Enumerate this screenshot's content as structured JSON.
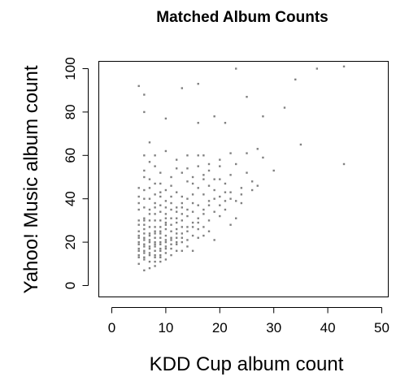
{
  "chart_data": {
    "type": "scatter",
    "title": "Matched Album Counts",
    "xlabel": "KDD Cup album count",
    "ylabel": "Yahoo! Music album count",
    "xlim": [
      0,
      50
    ],
    "ylim": [
      0,
      100
    ],
    "xticks": [
      0,
      10,
      20,
      30,
      40,
      50
    ],
    "yticks": [
      0,
      20,
      40,
      60,
      80,
      100
    ],
    "x_tick_labels": [
      "0",
      "10",
      "20",
      "30",
      "40",
      "50"
    ],
    "y_tick_labels": [
      "0",
      "20",
      "40",
      "60",
      "80",
      "100"
    ],
    "grid": false,
    "point_color": "#808080",
    "points": [
      [
        5,
        92
      ],
      [
        6,
        88
      ],
      [
        6,
        80
      ],
      [
        10,
        77
      ],
      [
        13,
        91
      ],
      [
        16,
        93
      ],
      [
        16,
        75
      ],
      [
        21,
        75
      ],
      [
        23,
        100
      ],
      [
        25,
        87
      ],
      [
        19,
        78
      ],
      [
        28,
        78
      ],
      [
        32,
        82
      ],
      [
        34,
        95
      ],
      [
        38,
        100
      ],
      [
        43,
        101
      ],
      [
        35,
        65
      ],
      [
        43,
        56
      ],
      [
        30,
        53
      ],
      [
        27,
        63
      ],
      [
        28,
        59
      ],
      [
        25,
        61
      ],
      [
        22,
        61
      ],
      [
        20,
        58
      ],
      [
        17,
        60
      ],
      [
        16,
        60
      ],
      [
        18,
        56
      ],
      [
        14,
        54
      ],
      [
        12,
        54
      ],
      [
        8,
        60
      ],
      [
        7,
        66
      ],
      [
        7,
        57
      ],
      [
        6,
        53
      ],
      [
        5,
        45
      ],
      [
        6,
        50
      ],
      [
        8,
        47
      ],
      [
        9,
        41
      ],
      [
        10,
        44
      ],
      [
        11,
        46
      ],
      [
        12,
        43
      ],
      [
        14,
        48
      ],
      [
        15,
        50
      ],
      [
        17,
        51
      ],
      [
        19,
        49
      ],
      [
        21,
        47
      ],
      [
        22,
        51
      ],
      [
        24,
        45
      ],
      [
        23,
        39
      ],
      [
        20,
        41
      ],
      [
        18,
        37
      ],
      [
        17,
        33
      ],
      [
        16,
        31
      ],
      [
        14,
        35
      ],
      [
        13,
        33
      ],
      [
        12,
        29
      ],
      [
        11,
        31
      ],
      [
        10,
        36
      ],
      [
        9,
        34
      ],
      [
        8,
        38
      ],
      [
        7,
        40
      ],
      [
        5,
        38
      ],
      [
        5,
        35
      ],
      [
        6,
        31
      ],
      [
        6,
        28
      ],
      [
        7,
        27
      ],
      [
        8,
        25
      ],
      [
        9,
        24
      ],
      [
        10,
        26
      ],
      [
        11,
        22
      ],
      [
        12,
        19
      ],
      [
        13,
        24
      ],
      [
        14,
        27
      ],
      [
        15,
        23
      ],
      [
        16,
        22
      ],
      [
        17,
        27
      ],
      [
        18,
        30
      ],
      [
        19,
        21
      ],
      [
        15,
        16
      ],
      [
        13,
        16
      ],
      [
        11,
        14
      ],
      [
        10,
        12
      ],
      [
        9,
        11
      ],
      [
        8,
        9
      ],
      [
        7,
        8
      ],
      [
        6,
        7
      ],
      [
        5,
        10
      ],
      [
        5,
        13
      ],
      [
        5,
        16
      ],
      [
        5,
        19
      ],
      [
        5,
        22
      ],
      [
        5,
        25
      ],
      [
        5,
        28
      ],
      [
        6,
        12
      ],
      [
        6,
        15
      ],
      [
        6,
        18
      ],
      [
        6,
        21
      ],
      [
        6,
        24
      ],
      [
        7,
        11
      ],
      [
        7,
        14
      ],
      [
        7,
        17
      ],
      [
        7,
        20
      ],
      [
        7,
        23
      ],
      [
        8,
        13
      ],
      [
        8,
        16
      ],
      [
        8,
        19
      ],
      [
        8,
        22
      ],
      [
        9,
        14
      ],
      [
        9,
        17
      ],
      [
        9,
        20
      ],
      [
        9,
        27
      ],
      [
        10,
        15
      ],
      [
        10,
        18
      ],
      [
        10,
        21
      ],
      [
        10,
        29
      ],
      [
        11,
        25
      ],
      [
        11,
        28
      ],
      [
        12,
        22
      ],
      [
        12,
        26
      ],
      [
        13,
        20
      ],
      [
        13,
        30
      ],
      [
        14,
        21
      ],
      [
        15,
        29
      ],
      [
        16,
        26
      ],
      [
        18,
        25
      ],
      [
        20,
        32
      ],
      [
        21,
        35
      ],
      [
        22,
        28
      ],
      [
        24,
        38
      ],
      [
        26,
        44
      ],
      [
        27,
        46
      ],
      [
        25,
        52
      ],
      [
        23,
        56
      ],
      [
        19,
        44
      ],
      [
        17,
        42
      ],
      [
        15,
        38
      ],
      [
        13,
        41
      ],
      [
        11,
        38
      ],
      [
        9,
        47
      ],
      [
        7,
        49
      ],
      [
        6,
        44
      ],
      [
        5,
        41
      ],
      [
        6,
        36
      ],
      [
        7,
        33
      ],
      [
        8,
        30
      ],
      [
        9,
        30
      ],
      [
        10,
        33
      ],
      [
        11,
        35
      ],
      [
        12,
        36
      ],
      [
        13,
        36
      ],
      [
        14,
        40
      ],
      [
        15,
        42
      ],
      [
        16,
        45
      ],
      [
        18,
        46
      ],
      [
        20,
        49
      ],
      [
        22,
        43
      ],
      [
        9,
        52
      ],
      [
        11,
        50
      ],
      [
        13,
        52
      ],
      [
        16,
        55
      ],
      [
        18,
        53
      ],
      [
        20,
        55
      ],
      [
        12,
        58
      ],
      [
        14,
        60
      ],
      [
        10,
        62
      ],
      [
        8,
        55
      ],
      [
        6,
        60
      ],
      [
        7,
        45
      ],
      [
        8,
        42
      ],
      [
        6,
        40
      ],
      [
        5,
        30
      ],
      [
        6,
        26
      ],
      [
        7,
        30
      ],
      [
        8,
        27
      ],
      [
        8,
        24
      ],
      [
        9,
        22
      ],
      [
        10,
        23
      ],
      [
        11,
        19
      ],
      [
        12,
        16
      ],
      [
        13,
        27
      ],
      [
        14,
        18
      ],
      [
        15,
        34
      ],
      [
        16,
        37
      ],
      [
        17,
        23
      ],
      [
        19,
        34
      ],
      [
        21,
        39
      ],
      [
        23,
        31
      ],
      [
        24,
        42
      ],
      [
        26,
        48
      ],
      [
        15,
        47
      ],
      [
        17,
        49
      ],
      [
        5,
        17
      ],
      [
        6,
        19
      ],
      [
        7,
        21
      ],
      [
        8,
        18
      ],
      [
        9,
        16
      ],
      [
        10,
        20
      ],
      [
        11,
        17
      ],
      [
        12,
        24
      ],
      [
        13,
        22
      ],
      [
        14,
        25
      ],
      [
        5,
        14
      ],
      [
        6,
        13
      ],
      [
        7,
        15
      ],
      [
        8,
        14
      ],
      [
        9,
        19
      ],
      [
        10,
        17
      ],
      [
        11,
        21
      ],
      [
        12,
        20
      ],
      [
        6,
        22
      ],
      [
        7,
        24
      ],
      [
        8,
        20
      ],
      [
        9,
        25
      ],
      [
        10,
        28
      ],
      [
        5,
        20
      ],
      [
        6,
        16
      ],
      [
        7,
        18
      ],
      [
        8,
        11
      ],
      [
        9,
        13
      ],
      [
        5,
        23
      ],
      [
        6,
        30
      ],
      [
        7,
        35
      ],
      [
        8,
        33
      ],
      [
        9,
        37
      ],
      [
        10,
        39
      ],
      [
        11,
        41
      ],
      [
        12,
        34
      ],
      [
        13,
        38
      ],
      [
        14,
        32
      ],
      [
        15,
        27
      ],
      [
        16,
        29
      ],
      [
        17,
        35
      ],
      [
        18,
        39
      ],
      [
        19,
        40
      ],
      [
        20,
        37
      ],
      [
        21,
        43
      ],
      [
        22,
        40
      ],
      [
        12,
        31
      ],
      [
        10,
        31
      ],
      [
        9,
        43
      ],
      [
        8,
        36
      ]
    ]
  }
}
